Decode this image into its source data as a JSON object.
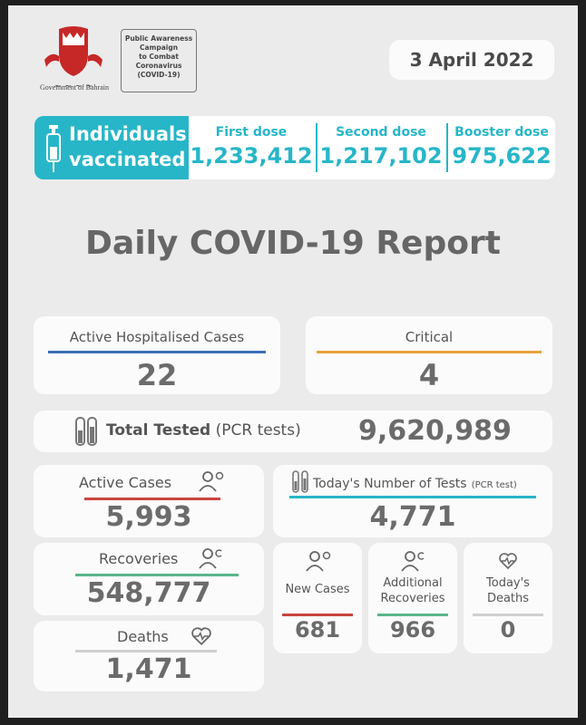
{
  "header": {
    "government_label": "Government of Bahrain",
    "campaign_lines": [
      "Public Awareness",
      "Campaign",
      "to Combat",
      "Coronavirus",
      "(COVID-19)"
    ],
    "date": "3 April 2022"
  },
  "vaccination": {
    "title_line1": "Individuals",
    "title_line2": "vaccinated",
    "first_label": "First dose",
    "first_value": "1,233,412",
    "second_label": "Second dose",
    "second_value": "1,217,102",
    "booster_label": "Booster dose",
    "booster_value": "975,622"
  },
  "report_title": "Daily COVID-19 Report",
  "hospitalised": {
    "label": "Active Hospitalised Cases",
    "value": "22"
  },
  "critical": {
    "label": "Critical",
    "value": "4"
  },
  "total_tested": {
    "label": "Total Tested",
    "sub": "(PCR tests)",
    "value": "9,620,989"
  },
  "active_cases": {
    "label": "Active Cases",
    "value": "5,993"
  },
  "todays_tests": {
    "label": "Today's Number of Tests",
    "sub": "(PCR test)",
    "value": "4,771"
  },
  "recoveries": {
    "label": "Recoveries",
    "value": "548,777"
  },
  "new_cases": {
    "label": "New Cases",
    "value": "681"
  },
  "additional_recoveries": {
    "label_line1": "Additional",
    "label_line2": "Recoveries",
    "value": "966"
  },
  "todays_deaths": {
    "label_line1": "Today's",
    "label_line2": "Deaths",
    "value": "0"
  },
  "deaths": {
    "label": "Deaths",
    "value": "1,471"
  },
  "colors": {
    "teal": "#27b6c8",
    "blue": "#3b6fb6",
    "orange": "#e8a23a",
    "red": "#c9453f",
    "green": "#5bb58a",
    "text": "#666666"
  }
}
